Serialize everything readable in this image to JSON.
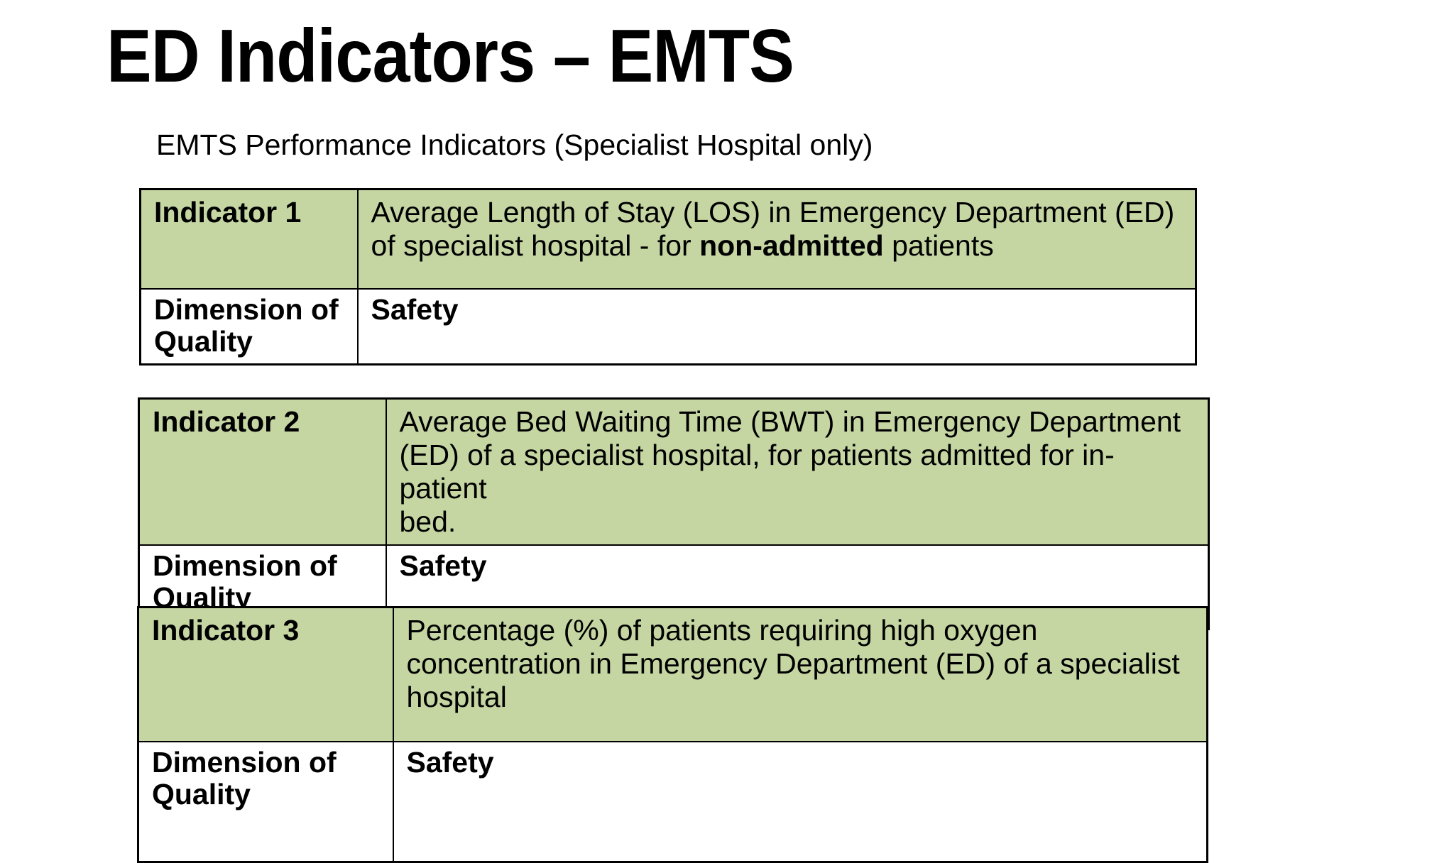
{
  "page": {
    "title": "ED Indicators – EMTS",
    "subtitle": "EMTS Performance Indicators (Specialist Hospital only)"
  },
  "colors": {
    "table_header_green": "#c5d6a2",
    "border_black": "#000000",
    "page_background": "#ffffff"
  },
  "tables": [
    {
      "header_label": "Indicator 1",
      "desc_prefix": "Average Length of Stay (LOS) in Emergency Department (ED)\nof specialist hospital - for ",
      "desc_bold": "non-admitted",
      "desc_suffix": " patients",
      "dimension_label": "Dimension of Quality",
      "dimension_value": "Safety"
    },
    {
      "header_label": "Indicator 2",
      "desc_prefix": "Average Bed Waiting Time (BWT) in Emergency Department\n(ED) of a specialist hospital, for patients admitted for in-patient\nbed.",
      "desc_bold": "",
      "desc_suffix": "",
      "dimension_label": "Dimension of Quality",
      "dimension_value": "Safety"
    },
    {
      "header_label": "Indicator 3",
      "desc_prefix": "Percentage (%) of patients requiring high oxygen\nconcentration in Emergency Department (ED) of a specialist\nhospital",
      "desc_bold": "",
      "desc_suffix": "",
      "dimension_label": "Dimension of Quality",
      "dimension_value": "Safety"
    }
  ]
}
